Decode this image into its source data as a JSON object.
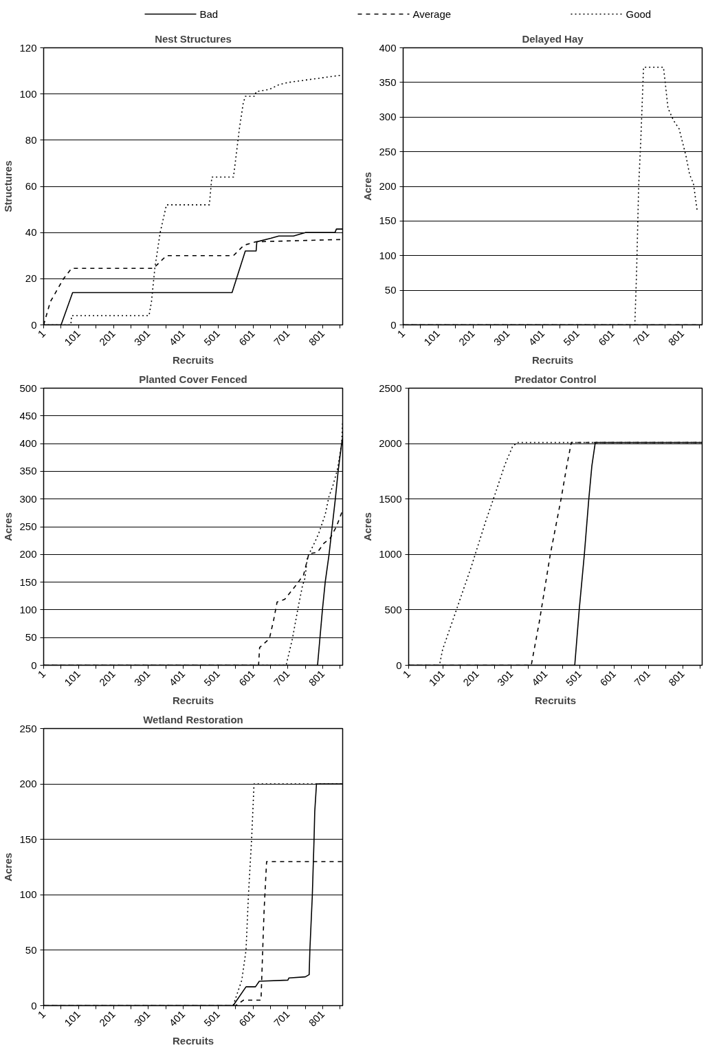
{
  "chart_data": [
    {
      "type": "line",
      "title": "Nest Structures",
      "xlabel": "Recruits",
      "ylabel": "Structures",
      "xlim": [
        1,
        858
      ],
      "ylim": [
        0,
        120
      ],
      "xticks": [
        1,
        {
          "value": 51,
          "label": null
        },
        101,
        {
          "value": 151,
          "label": null
        },
        201,
        {
          "value": 251,
          "label": null
        },
        301,
        {
          "value": 351,
          "label": null
        },
        401,
        {
          "value": 451,
          "label": null
        },
        501,
        {
          "value": 551,
          "label": null
        },
        601,
        {
          "value": 651,
          "label": null
        },
        701,
        {
          "value": 751,
          "label": null
        },
        801,
        {
          "value": 851,
          "label": null
        }
      ],
      "yticks": [
        0,
        20,
        40,
        60,
        80,
        100,
        120
      ],
      "grid": "y",
      "legend": "top",
      "series": [
        {
          "name": "Bad",
          "color": "#000000",
          "line_style": "solid",
          "x": [
            1,
            51,
            84,
            541,
            579,
            610,
            612,
            652,
            675,
            717,
            751,
            836,
            840,
            858
          ],
          "values": [
            0,
            0,
            14,
            14,
            32,
            32,
            36,
            37.5,
            38.5,
            38.5,
            40,
            40,
            41.5,
            41.5
          ]
        },
        {
          "name": "Average",
          "color": "#000000",
          "line_style": "dashed",
          "x": [
            1,
            20,
            58,
            81,
            315,
            326,
            353,
            545,
            575,
            610,
            858
          ],
          "values": [
            0,
            10,
            20,
            24.5,
            24.5,
            26,
            30,
            30,
            34.5,
            36,
            37
          ]
        },
        {
          "name": "Good",
          "color": "#000000",
          "line_style": "dotted",
          "x": [
            1,
            79,
            81,
            303,
            310,
            320,
            335,
            353,
            476,
            483,
            545,
            550,
            562,
            573,
            579,
            606,
            610,
            648,
            675,
            702,
            751,
            847,
            858
          ],
          "values": [
            0,
            0,
            4,
            4,
            10,
            25,
            40,
            52,
            52,
            64,
            64,
            70,
            85,
            96,
            99,
            99,
            101,
            102,
            104,
            105,
            106,
            108,
            108
          ]
        }
      ]
    },
    {
      "type": "line",
      "title": "Delayed Hay",
      "xlabel": "Recruits",
      "ylabel": "Acres",
      "xlim": [
        1,
        858
      ],
      "ylim": [
        0,
        400
      ],
      "xticks": [
        1,
        {
          "value": 51,
          "label": null
        },
        101,
        {
          "value": 151,
          "label": null
        },
        201,
        {
          "value": 251,
          "label": null
        },
        301,
        {
          "value": 351,
          "label": null
        },
        401,
        {
          "value": 451,
          "label": null
        },
        501,
        {
          "value": 551,
          "label": null
        },
        601,
        {
          "value": 651,
          "label": null
        },
        701,
        {
          "value": 751,
          "label": null
        },
        801,
        {
          "value": 851,
          "label": null
        }
      ],
      "yticks": [
        0,
        50,
        100,
        150,
        200,
        250,
        300,
        350,
        400
      ],
      "grid": "y",
      "series": [
        {
          "color": "#000000",
          "line_style": "solid",
          "x": [
            1,
            858
          ],
          "values": [
            0,
            0
          ]
        },
        {
          "color": "#000000",
          "line_style": "dashed",
          "x": [
            1,
            858
          ],
          "values": [
            0,
            0
          ]
        },
        {
          "color": "#000000",
          "line_style": "dotted",
          "x": [
            1,
            665,
            670,
            676,
            682,
            690,
            747,
            751,
            760,
            776,
            792,
            812,
            822,
            833,
            844
          ],
          "values": [
            0,
            0,
            75,
            200,
            265,
            372,
            372,
            355,
            313,
            295,
            283,
            243,
            217,
            204,
            164
          ]
        }
      ]
    },
    {
      "type": "line",
      "title": "Planted Cover Fenced",
      "xlabel": "Recruits",
      "ylabel": "Acres",
      "xlim": [
        1,
        858
      ],
      "ylim": [
        0,
        500
      ],
      "xticks": [
        1,
        {
          "value": 51,
          "label": null
        },
        101,
        {
          "value": 151,
          "label": null
        },
        201,
        {
          "value": 251,
          "label": null
        },
        301,
        {
          "value": 351,
          "label": null
        },
        401,
        {
          "value": 451,
          "label": null
        },
        501,
        {
          "value": 551,
          "label": null
        },
        601,
        {
          "value": 651,
          "label": null
        },
        701,
        {
          "value": 751,
          "label": null
        },
        801,
        {
          "value": 851,
          "label": null
        }
      ],
      "yticks": [
        0,
        50,
        100,
        150,
        200,
        250,
        300,
        350,
        400,
        450,
        500
      ],
      "grid": "y",
      "series": [
        {
          "color": "#000000",
          "line_style": "solid",
          "x": [
            1,
            786,
            800,
            808,
            819,
            828,
            837,
            845,
            855,
            858
          ],
          "values": [
            0,
            0,
            100,
            150,
            200,
            250,
            300,
            350,
            400,
            410
          ]
        },
        {
          "color": "#000000",
          "line_style": "dashed",
          "x": [
            1,
            617,
            620,
            648,
            660,
            670,
            692,
            720,
            746,
            761,
            786,
            804,
            822,
            840,
            858
          ],
          "values": [
            0,
            0,
            32,
            48,
            81,
            114,
            119,
            141,
            163,
            201,
            204,
            220,
            229,
            250,
            280
          ]
        },
        {
          "color": "#000000",
          "line_style": "dotted",
          "x": [
            1,
            696,
            714,
            730,
            743,
            750,
            757,
            779,
            790,
            808,
            819,
            830,
            844,
            855,
            858
          ],
          "values": [
            0,
            0,
            48,
            103,
            144,
            157,
            195,
            223,
            239,
            272,
            305,
            324,
            356,
            400,
            440
          ]
        }
      ]
    },
    {
      "type": "line",
      "title": "Predator Control",
      "xlabel": "Recruits",
      "ylabel": "Acres",
      "xlim": [
        1,
        858
      ],
      "ylim": [
        0,
        2500
      ],
      "xticks": [
        1,
        {
          "value": 51,
          "label": null
        },
        101,
        {
          "value": 151,
          "label": null
        },
        201,
        {
          "value": 251,
          "label": null
        },
        301,
        {
          "value": 351,
          "label": null
        },
        401,
        {
          "value": 451,
          "label": null
        },
        501,
        {
          "value": 551,
          "label": null
        },
        601,
        {
          "value": 651,
          "label": null
        },
        701,
        {
          "value": 751,
          "label": null
        },
        801,
        {
          "value": 851,
          "label": null
        }
      ],
      "yticks": [
        0,
        500,
        1000,
        1500,
        2000,
        2500
      ],
      "grid": "y",
      "series": [
        {
          "color": "#000000",
          "line_style": "solid",
          "x": [
            1,
            486,
            499,
            514,
            527,
            536,
            546,
            858
          ],
          "values": [
            0,
            0,
            500,
            1000,
            1500,
            1800,
            2010,
            2010
          ]
        },
        {
          "color": "#000000",
          "line_style": "dashed",
          "x": [
            1,
            359,
            383,
            414,
            446,
            464,
            476,
            858
          ],
          "values": [
            0,
            0,
            400,
            990,
            1500,
            1820,
            2010,
            2010
          ]
        },
        {
          "color": "#000000",
          "line_style": "dotted",
          "x": [
            1,
            91,
            100,
            136,
            184,
            226,
            254,
            282,
            304,
            317,
            858
          ],
          "values": [
            0,
            0,
            140,
            460,
            890,
            1300,
            1550,
            1810,
            1970,
            2010,
            2010
          ]
        }
      ]
    },
    {
      "type": "line",
      "title": "Wetland Restoration",
      "xlabel": "Recruits",
      "ylabel": "Acres",
      "xlim": [
        1,
        858
      ],
      "ylim": [
        0,
        250
      ],
      "xticks": [
        1,
        {
          "value": 51,
          "label": null
        },
        101,
        {
          "value": 151,
          "label": null
        },
        201,
        {
          "value": 251,
          "label": null
        },
        301,
        {
          "value": 351,
          "label": null
        },
        401,
        {
          "value": 451,
          "label": null
        },
        501,
        {
          "value": 551,
          "label": null
        },
        601,
        {
          "value": 651,
          "label": null
        },
        701,
        {
          "value": 751,
          "label": null
        },
        801,
        {
          "value": 851,
          "label": null
        }
      ],
      "yticks": [
        0,
        50,
        100,
        150,
        200,
        250
      ],
      "grid": "y",
      "series": [
        {
          "color": "#000000",
          "line_style": "solid",
          "x": [
            1,
            544,
            581,
            608,
            619,
            701,
            704,
            751,
            762,
            764,
            771,
            776,
            778,
            783,
            858
          ],
          "values": [
            0,
            0,
            17,
            17,
            22,
            23,
            25,
            26,
            28,
            50,
            99,
            150,
            175,
            200,
            200
          ]
        },
        {
          "color": "#000000",
          "line_style": "dashed",
          "x": [
            1,
            551,
            574,
            624,
            630,
            633,
            640,
            858
          ],
          "values": [
            0,
            0,
            5,
            5,
            61,
            87,
            130,
            130
          ]
        },
        {
          "color": "#000000",
          "line_style": "dotted",
          "x": [
            1,
            544,
            569,
            581,
            588,
            597,
            604,
            858
          ],
          "values": [
            0,
            0,
            23,
            50,
            100,
            150,
            200,
            200
          ]
        }
      ]
    }
  ]
}
